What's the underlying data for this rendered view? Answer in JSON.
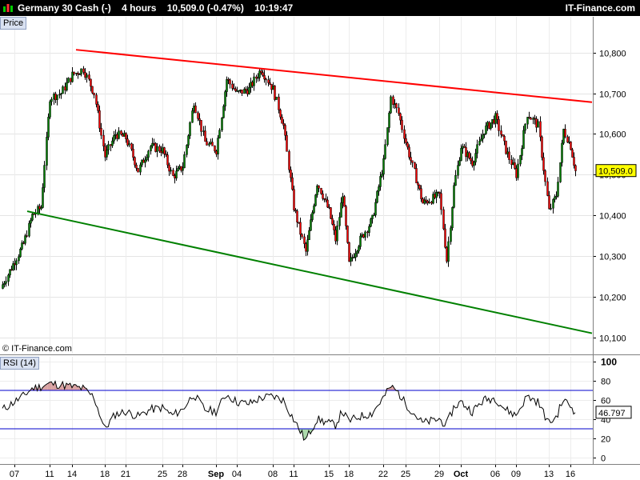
{
  "header": {
    "symbol": "Germany 30 Cash (-)",
    "interval": "4 hours",
    "quote": "10,509.0 (-0.47%)",
    "time": "10:19:47",
    "brand": "IT-Finance.com"
  },
  "panels": {
    "price_label": "Price",
    "rsi_label": "RSI (14)",
    "copyright": "© IT-Finance.com"
  },
  "colors": {
    "resistance": "#ff0000",
    "support": "#008000",
    "bull_candle": "#008000",
    "bear_candle": "#ff0000",
    "price_tag": "#ffff00",
    "rsi_overbought_fill": "#d8a0a0",
    "rsi_oversold_fill": "#a8d8a8",
    "rsi_levels": "#0000cc"
  },
  "chart_data": [
    {
      "type": "candlestick",
      "name": "price",
      "y_tick_labels": [
        "10,800",
        "10,700",
        "10,600",
        "10,500",
        "10,400",
        "10,300",
        "10,200",
        "10,100"
      ],
      "y_ticks": [
        10800,
        10700,
        10600,
        10500,
        10400,
        10300,
        10200,
        10100
      ],
      "ylim": [
        10060,
        10888
      ],
      "x_date_labels": [
        "07",
        "11",
        "14",
        "18",
        "21",
        "25",
        "28",
        "Sep",
        "04",
        "08",
        "11",
        "15",
        "18",
        "22",
        "25",
        "29",
        "Oct",
        "06",
        "09",
        "13",
        "16"
      ],
      "x_bold_labels": [
        "Sep",
        "Oct"
      ],
      "last_price_label": "10,509.0",
      "last_price": 10509.0,
      "trendlines": [
        {
          "name": "resistance",
          "from": {
            "date": "14",
            "value": 10807
          },
          "to": {
            "date": "after 16",
            "value": 10678
          }
        },
        {
          "name": "support",
          "from": {
            "date": "07",
            "value": 10410
          },
          "to": {
            "date": "after 16",
            "value": 10110
          }
        }
      ],
      "close_path": [
        [
          "07",
          10230
        ],
        [
          "07",
          10330
        ],
        [
          "07",
          10400
        ],
        [
          "07",
          10420
        ],
        [
          "11",
          10690
        ],
        [
          "11",
          10700
        ],
        [
          "14",
          10745
        ],
        [
          "14",
          10760
        ],
        [
          "14",
          10700
        ],
        [
          "18",
          10545
        ],
        [
          "18",
          10600
        ],
        [
          "21",
          10590
        ],
        [
          "21",
          10510
        ],
        [
          "21",
          10570
        ],
        [
          "25",
          10560
        ],
        [
          "25",
          10495
        ],
        [
          "28",
          10520
        ],
        [
          "28",
          10680
        ],
        [
          "28",
          10580
        ],
        [
          "Sep",
          10560
        ],
        [
          "Sep",
          10735
        ],
        [
          "04",
          10700
        ],
        [
          "04",
          10710
        ],
        [
          "04",
          10760
        ],
        [
          "08",
          10710
        ],
        [
          "08",
          10620
        ],
        [
          "11",
          10420
        ],
        [
          "11",
          10310
        ],
        [
          "11",
          10480
        ],
        [
          "15",
          10410
        ],
        [
          "15",
          10340
        ],
        [
          "15",
          10455
        ],
        [
          "18",
          10280
        ],
        [
          "18",
          10340
        ],
        [
          "18",
          10390
        ],
        [
          "22",
          10530
        ],
        [
          "22",
          10690
        ],
        [
          "22",
          10650
        ],
        [
          "25",
          10580
        ],
        [
          "25",
          10430
        ],
        [
          "29",
          10450
        ],
        [
          "29",
          10290
        ],
        [
          "29",
          10470
        ],
        [
          "Oct",
          10570
        ],
        [
          "Oct",
          10530
        ],
        [
          "Oct",
          10610
        ],
        [
          "06",
          10640
        ],
        [
          "06",
          10560
        ],
        [
          "09",
          10500
        ],
        [
          "09",
          10650
        ],
        [
          "09",
          10620
        ],
        [
          "13",
          10410
        ],
        [
          "13",
          10450
        ],
        [
          "13",
          10610
        ],
        [
          "16",
          10570
        ],
        [
          "16",
          10509
        ]
      ]
    },
    {
      "type": "line",
      "name": "RSI (14)",
      "y_tick_labels": [
        "100",
        "80",
        "60",
        "40",
        "20",
        "0"
      ],
      "y_ticks": [
        100,
        80,
        60,
        40,
        20,
        0
      ],
      "ylim": [
        0,
        100
      ],
      "levels": [
        70,
        30
      ],
      "last_value_label": "46.797",
      "last_value": 46.797,
      "values_path": [
        [
          "07",
          50
        ],
        [
          "07",
          64
        ],
        [
          "07",
          72
        ],
        [
          "07",
          74
        ],
        [
          "11",
          77
        ],
        [
          "11",
          76
        ],
        [
          "14",
          74
        ],
        [
          "14",
          72
        ],
        [
          "14",
          63
        ],
        [
          "18",
          30
        ],
        [
          "18",
          45
        ],
        [
          "21",
          48
        ],
        [
          "21",
          43
        ],
        [
          "21",
          50
        ],
        [
          "25",
          52
        ],
        [
          "25",
          44
        ],
        [
          "28",
          50
        ],
        [
          "28",
          66
        ],
        [
          "28",
          50
        ],
        [
          "Sep",
          48
        ],
        [
          "Sep",
          66
        ],
        [
          "04",
          58
        ],
        [
          "04",
          56
        ],
        [
          "04",
          62
        ],
        [
          "08",
          64
        ],
        [
          "08",
          60
        ],
        [
          "11",
          40
        ],
        [
          "11",
          18
        ],
        [
          "11",
          40
        ],
        [
          "15",
          36
        ],
        [
          "15",
          34
        ],
        [
          "15",
          48
        ],
        [
          "18",
          38
        ],
        [
          "18",
          43
        ],
        [
          "18",
          46
        ],
        [
          "22",
          62
        ],
        [
          "22",
          74
        ],
        [
          "22",
          68
        ],
        [
          "25",
          56
        ],
        [
          "25",
          36
        ],
        [
          "29",
          40
        ],
        [
          "29",
          34
        ],
        [
          "29",
          52
        ],
        [
          "Oct",
          58
        ],
        [
          "Oct",
          48
        ],
        [
          "Oct",
          60
        ],
        [
          "06",
          62
        ],
        [
          "06",
          50
        ],
        [
          "09",
          44
        ],
        [
          "09",
          64
        ],
        [
          "09",
          58
        ],
        [
          "13",
          36
        ],
        [
          "13",
          42
        ],
        [
          "13",
          60
        ],
        [
          "16",
          54
        ],
        [
          "16",
          46.797
        ]
      ]
    }
  ]
}
